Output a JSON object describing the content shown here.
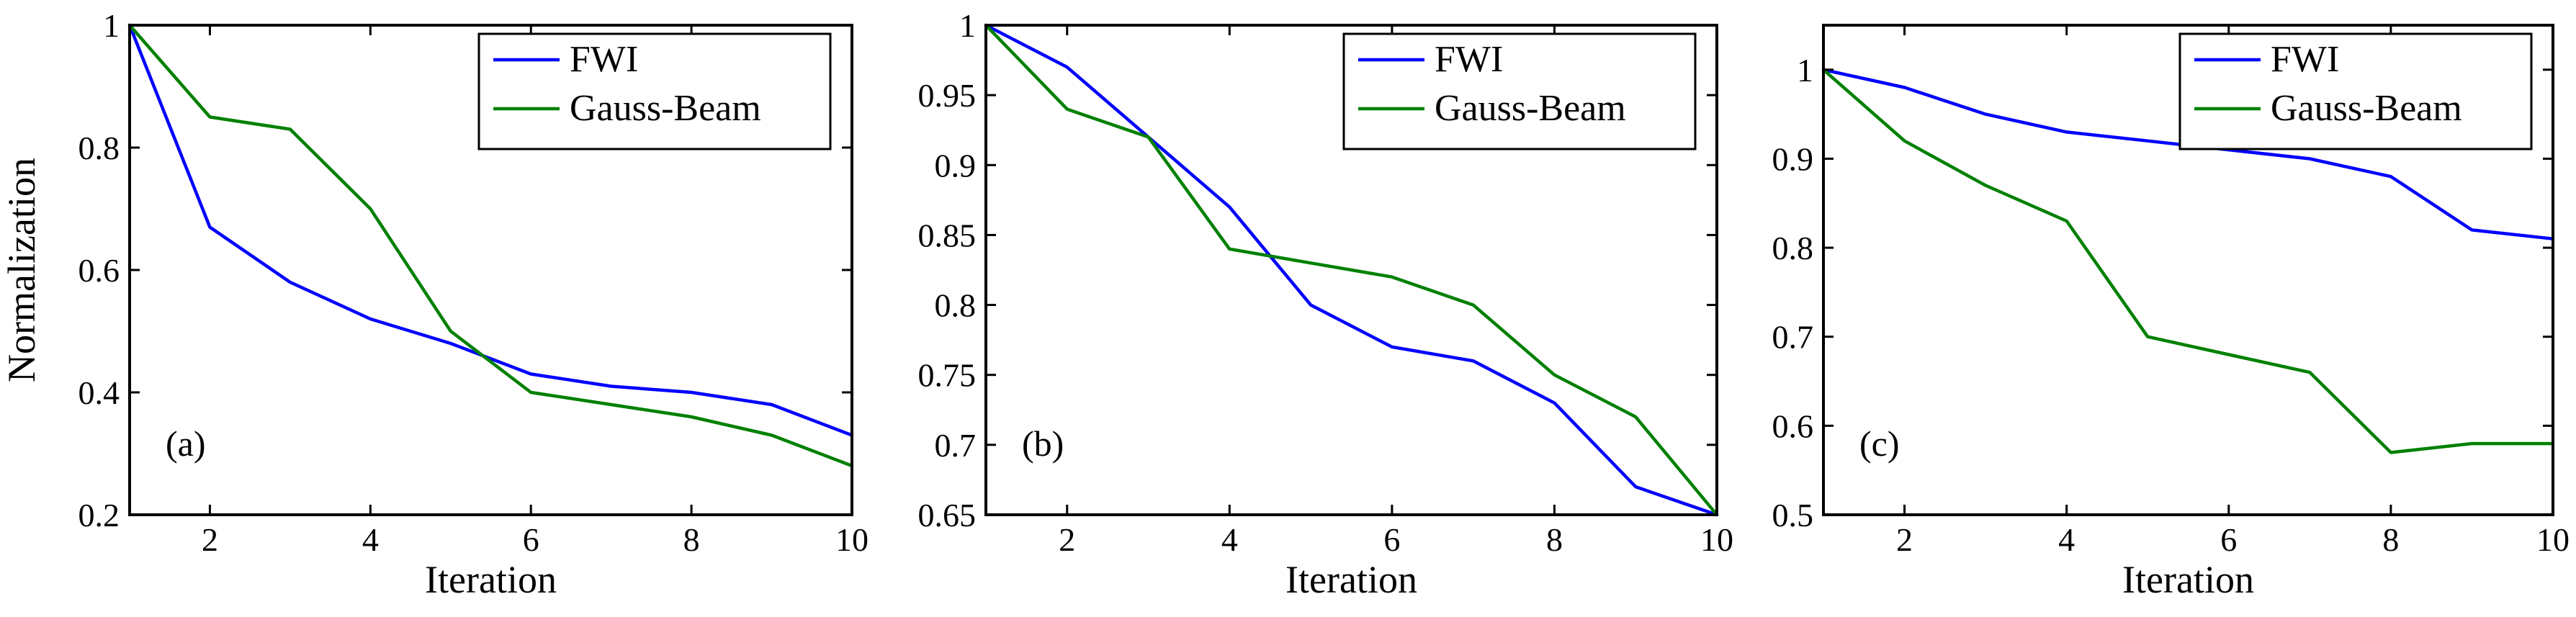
{
  "chart_data": [
    {
      "type": "line",
      "panel_label": "(a)",
      "xlabel": "Iteration",
      "ylabel": "Normalization",
      "xlim": [
        1,
        10
      ],
      "ylim": [
        0.2,
        1.0
      ],
      "xticks": [
        2,
        4,
        6,
        8,
        10
      ],
      "xtick_labels": [
        "2",
        "4",
        "6",
        "8",
        "10"
      ],
      "yticks": [
        0.2,
        0.4,
        0.6,
        0.8,
        1.0
      ],
      "ytick_labels": [
        "0.2",
        "0.4",
        "0.6",
        "0.8",
        "1"
      ],
      "legend_position": "top-right",
      "x": [
        1,
        2,
        3,
        4,
        5,
        6,
        7,
        8,
        9,
        10
      ],
      "series": [
        {
          "name": "FWI",
          "color": "#0000ff",
          "values": [
            1.0,
            0.67,
            0.58,
            0.52,
            0.48,
            0.43,
            0.41,
            0.4,
            0.38,
            0.33
          ]
        },
        {
          "name": "Gauss-Beam",
          "color": "#008000",
          "values": [
            1.0,
            0.85,
            0.83,
            0.7,
            0.5,
            0.4,
            0.38,
            0.36,
            0.33,
            0.28
          ]
        }
      ]
    },
    {
      "type": "line",
      "panel_label": "(b)",
      "xlabel": "Iteration",
      "ylabel": "",
      "xlim": [
        1,
        10
      ],
      "ylim": [
        0.65,
        1.0
      ],
      "xticks": [
        2,
        4,
        6,
        8,
        10
      ],
      "xtick_labels": [
        "2",
        "4",
        "6",
        "8",
        "10"
      ],
      "yticks": [
        0.65,
        0.7,
        0.75,
        0.8,
        0.85,
        0.9,
        0.95,
        1.0
      ],
      "ytick_labels": [
        "0.65",
        "0.7",
        "0.75",
        "0.8",
        "0.85",
        "0.9",
        "0.95",
        "1"
      ],
      "legend_position": "top-right",
      "x": [
        1,
        2,
        3,
        4,
        5,
        6,
        7,
        8,
        9,
        10
      ],
      "series": [
        {
          "name": "FWI",
          "color": "#0000ff",
          "values": [
            1.0,
            0.97,
            0.92,
            0.87,
            0.8,
            0.77,
            0.76,
            0.73,
            0.67,
            0.65
          ]
        },
        {
          "name": "Gauss-Beam",
          "color": "#008000",
          "values": [
            1.0,
            0.94,
            0.92,
            0.84,
            0.83,
            0.82,
            0.8,
            0.75,
            0.72,
            0.65
          ]
        }
      ]
    },
    {
      "type": "line",
      "panel_label": "(c)",
      "xlabel": "Iteration",
      "ylabel": "",
      "xlim": [
        1,
        10
      ],
      "ylim": [
        0.5,
        1.05
      ],
      "xticks": [
        2,
        4,
        6,
        8,
        10
      ],
      "xtick_labels": [
        "2",
        "4",
        "6",
        "8",
        "10"
      ],
      "yticks": [
        0.5,
        0.6,
        0.7,
        0.8,
        0.9,
        1.0
      ],
      "ytick_labels": [
        "0.5",
        "0.6",
        "0.7",
        "0.8",
        "0.9",
        "1"
      ],
      "legend_position": "top-right",
      "x": [
        1,
        2,
        3,
        4,
        5,
        6,
        7,
        8,
        9,
        10
      ],
      "series": [
        {
          "name": "FWI",
          "color": "#0000ff",
          "values": [
            1.0,
            0.98,
            0.95,
            0.93,
            0.92,
            0.91,
            0.9,
            0.88,
            0.82,
            0.81
          ]
        },
        {
          "name": "Gauss-Beam",
          "color": "#008000",
          "values": [
            1.0,
            0.92,
            0.87,
            0.83,
            0.7,
            0.68,
            0.66,
            0.57,
            0.58,
            0.58
          ]
        }
      ]
    }
  ]
}
